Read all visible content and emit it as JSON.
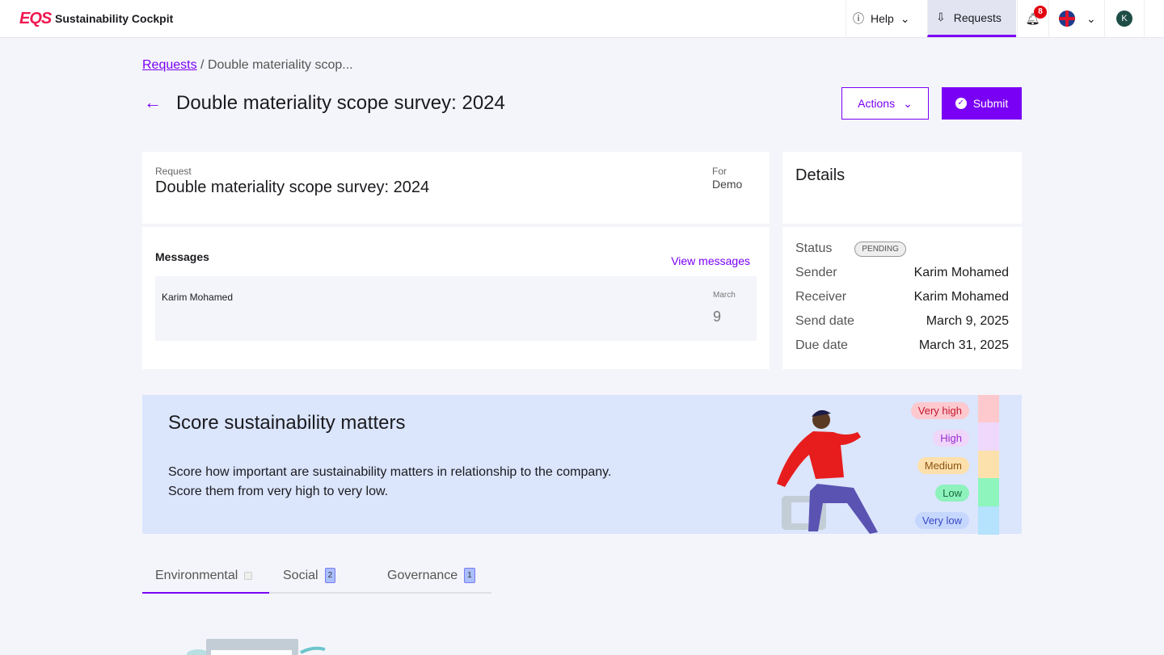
{
  "app": {
    "logo": "EQS",
    "title": "Sustainability Cockpit"
  },
  "topnav": {
    "help": "Help",
    "requests": "Requests",
    "notifications": "8",
    "user_initial": "K"
  },
  "breadcrumb": {
    "link": "Requests",
    "sep": "/",
    "current": "Double materiality scop..."
  },
  "page": {
    "title": "Double materiality scope survey: 2024",
    "actions": "Actions",
    "submit": "Submit"
  },
  "request": {
    "label": "Request",
    "title": "Double materiality scope survey: 2024",
    "for_label": "For",
    "for_value": "Demo"
  },
  "messages": {
    "title": "Messages",
    "view": "View messages",
    "items": [
      {
        "sender": "Karim Mohamed",
        "month": "March",
        "day": "9"
      }
    ]
  },
  "details": {
    "title": "Details",
    "status_label": "Status",
    "status": "PENDING",
    "rows": [
      {
        "k": "Sender",
        "v": "Karim Mohamed"
      },
      {
        "k": "Receiver",
        "v": "Karim Mohamed"
      },
      {
        "k": "Send date",
        "v": "March 9, 2025"
      },
      {
        "k": "Due date",
        "v": "March 31, 2025"
      }
    ]
  },
  "banner": {
    "title": "Score sustainability matters",
    "line1": "Score how important are sustainability matters in relationship to the company.",
    "line2": "Score them from very high to very low.",
    "levels": [
      {
        "label": "Very high",
        "bg": "#fdc9cf",
        "fg": "#c3162c",
        "bar": "#fec9cc"
      },
      {
        "label": "High",
        "bg": "#efd6fb",
        "fg": "#9a2bd0",
        "bar": "#efd8fb"
      },
      {
        "label": "Medium",
        "bg": "#fde0ab",
        "fg": "#8a5214",
        "bar": "#fde1ad"
      },
      {
        "label": "Low",
        "bg": "#8ef2bd",
        "fg": "#176b3e",
        "bar": "#8ef5bd"
      },
      {
        "label": "Very low",
        "bg": "#c6d7fd",
        "fg": "#3747c8",
        "bar": "#b5e2fc"
      }
    ]
  },
  "tabs": [
    {
      "label": "Environmental",
      "count": ""
    },
    {
      "label": "Social",
      "count": "2"
    },
    {
      "label": "Governance",
      "count": "1"
    }
  ]
}
